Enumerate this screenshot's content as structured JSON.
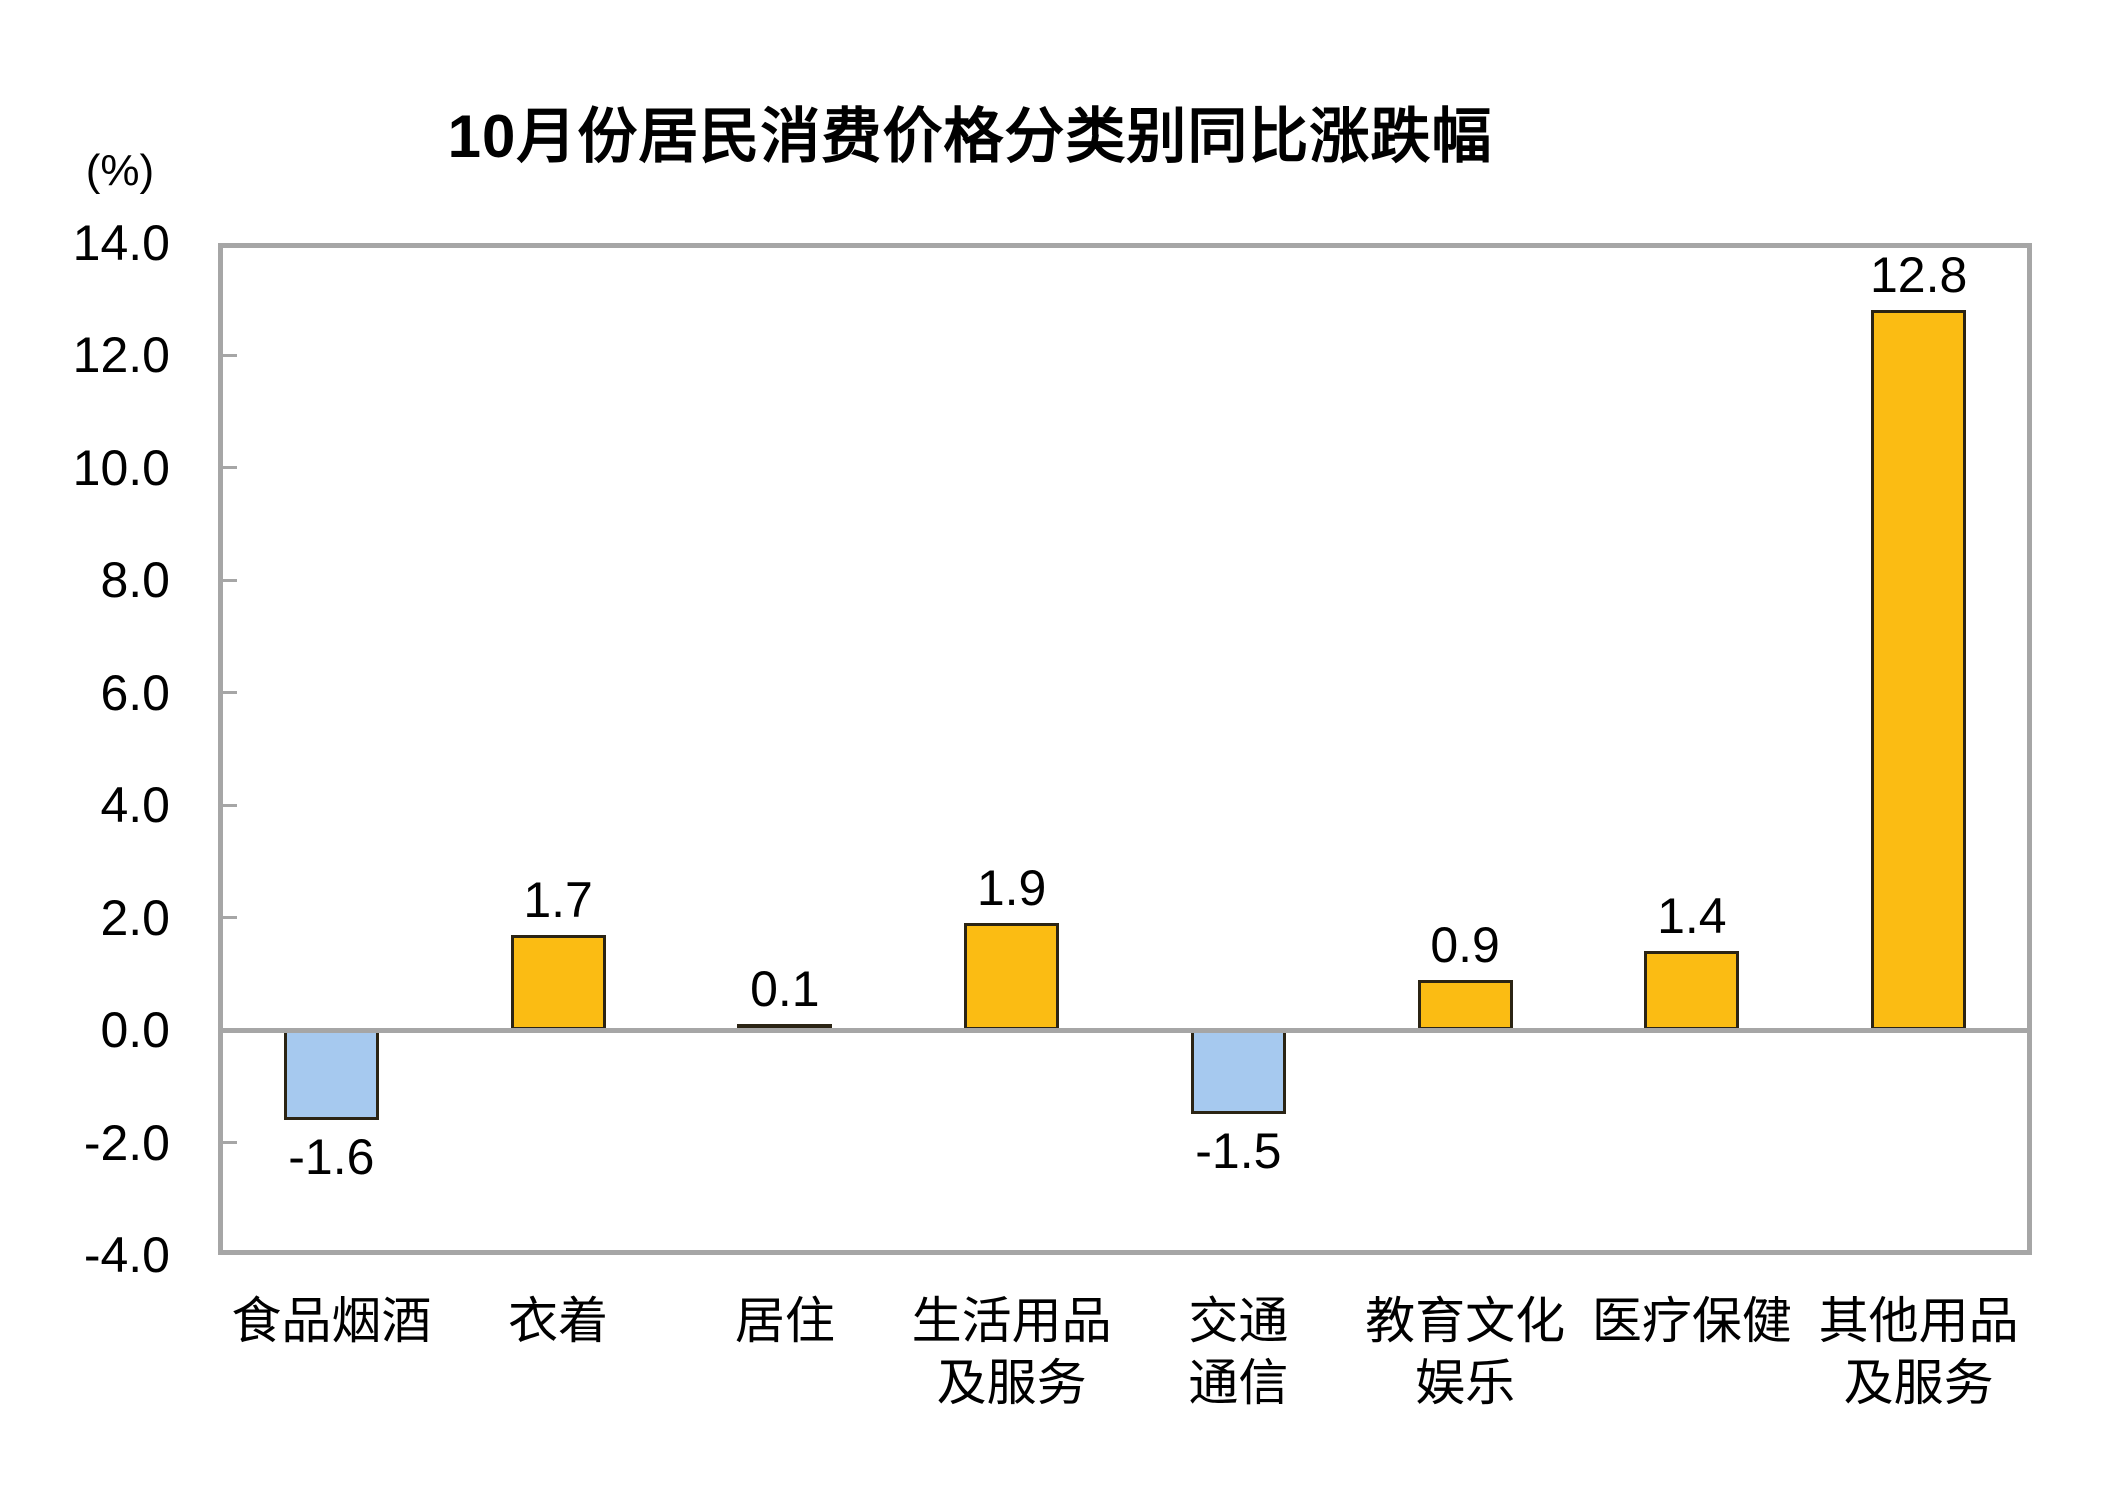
{
  "chart_data": {
    "type": "bar",
    "title": "10月份居民消费价格分类别同比涨跌幅",
    "unit_label": "(%)",
    "categories": [
      "食品烟酒",
      "衣着",
      "居住",
      "生活用品及服务",
      "交通通信",
      "教育文化娱乐",
      "医疗保健",
      "其他用品及服务"
    ],
    "category_label_lines": [
      [
        "食品烟酒"
      ],
      [
        "衣着"
      ],
      [
        "居住"
      ],
      [
        "生活用品",
        "及服务"
      ],
      [
        "交通",
        "通信"
      ],
      [
        "教育文化",
        "娱乐"
      ],
      [
        "医疗保健"
      ],
      [
        "其他用品",
        "及服务"
      ]
    ],
    "values": [
      -1.6,
      1.7,
      0.1,
      1.9,
      -1.5,
      0.9,
      1.4,
      12.8
    ],
    "value_labels": [
      "-1.6",
      "1.7",
      "0.1",
      "1.9",
      "-1.5",
      "0.9",
      "1.4",
      "12.8"
    ],
    "xlabel": "",
    "ylabel": "(%)",
    "ylim": [
      -4.0,
      14.0
    ],
    "y_tick_step": 2.0,
    "y_tick_labels": [
      "14.0",
      "12.0",
      "10.0",
      "8.0",
      "6.0",
      "4.0",
      "2.0",
      "0.0",
      "-2.0",
      "-4.0"
    ],
    "grid": false,
    "legend_position": "none",
    "colors": {
      "positive_bar": "#FBBC13",
      "negative_bar": "#A6C9EF",
      "bar_border": "#2B2414",
      "axis": "#A6A6A6",
      "text": "#000000",
      "background": "#FFFFFF"
    }
  }
}
